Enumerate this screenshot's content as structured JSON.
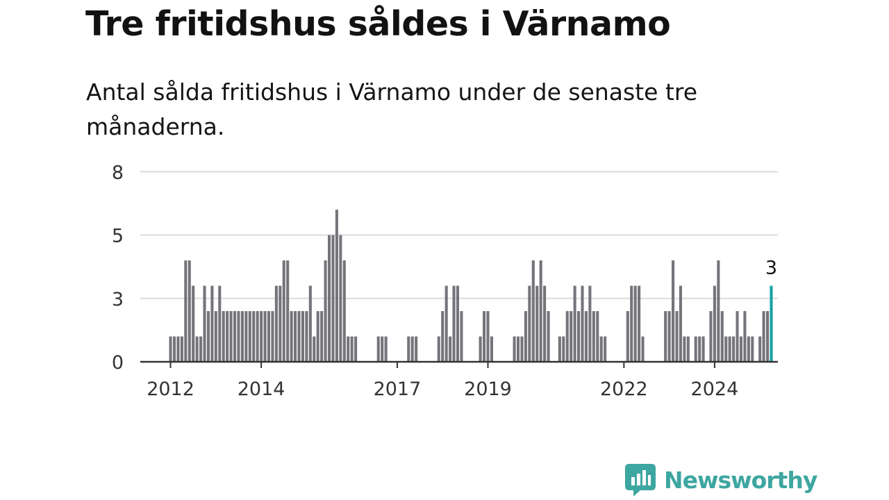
{
  "title": "Tre fritidshus såldes i Värnamo",
  "subtitle": "Antal sålda fritidshus i Värnamo under de senaste tre månaderna.",
  "logo": {
    "text": "Newsworthy",
    "icon": "newsworthy-logo-icon",
    "color": "#3ea6a1"
  },
  "colors": {
    "bar": "#75747a",
    "highlight": "#17a2a2",
    "grid": "#dcdcdc",
    "axis": "#333333"
  },
  "chart_data": {
    "type": "bar",
    "title": "Tre fritidshus såldes i Värnamo",
    "subtitle": "Antal sålda fritidshus i Värnamo under de senaste tre månaderna.",
    "ylim": [
      0,
      8
    ],
    "y_ticks": [
      "0",
      "3",
      "5",
      "8"
    ],
    "x_ticks": [
      "2012",
      "2014",
      "2017",
      "2019",
      "2022",
      "2024"
    ],
    "grid": true,
    "highlight_label": "3",
    "values": [
      1,
      1,
      1,
      1,
      4,
      4,
      3,
      1,
      1,
      3,
      2,
      3,
      2,
      3,
      2,
      2,
      2,
      2,
      2,
      2,
      2,
      2,
      2,
      2,
      2,
      2,
      2,
      2,
      3,
      3,
      4,
      4,
      2,
      2,
      2,
      2,
      2,
      3,
      1,
      2,
      2,
      4,
      5,
      5,
      6,
      5,
      4,
      1,
      1,
      1,
      0,
      0,
      0,
      0,
      0,
      1,
      1,
      1,
      0,
      0,
      0,
      0,
      0,
      1,
      1,
      1,
      0,
      0,
      0,
      0,
      0,
      1,
      2,
      3,
      1,
      3,
      3,
      2,
      0,
      0,
      0,
      0,
      1,
      2,
      2,
      1,
      0,
      0,
      0,
      0,
      0,
      1,
      1,
      1,
      2,
      3,
      4,
      3,
      4,
      3,
      2,
      0,
      0,
      1,
      1,
      2,
      2,
      3,
      2,
      3,
      2,
      3,
      2,
      2,
      1,
      1,
      0,
      0,
      0,
      0,
      0,
      2,
      3,
      3,
      3,
      1,
      0,
      0,
      0,
      0,
      0,
      2,
      2,
      4,
      2,
      3,
      1,
      1,
      0,
      1,
      1,
      1,
      0,
      2,
      3,
      4,
      2,
      1,
      1,
      1,
      2,
      1,
      2,
      1,
      1,
      0,
      1,
      2,
      2,
      3
    ]
  }
}
